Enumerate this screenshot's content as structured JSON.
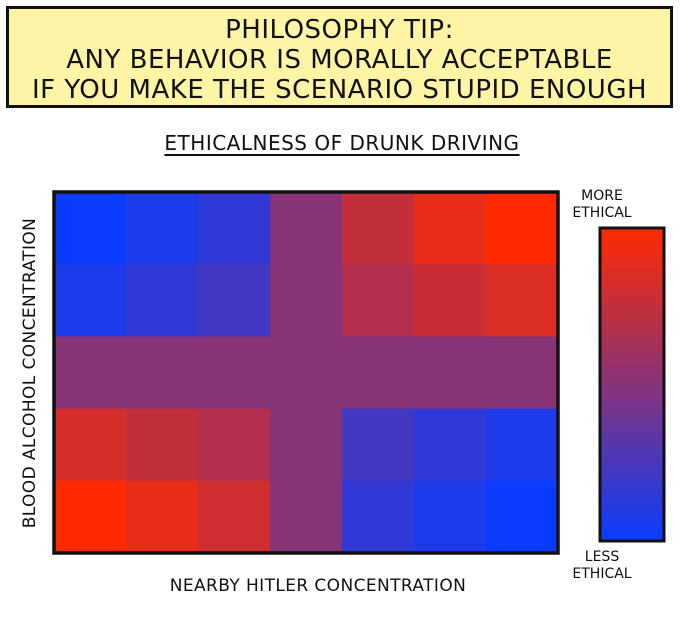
{
  "banner": {
    "lines": [
      "PHILOSOPHY TIP:",
      "ANY BEHAVIOR IS MORALLY ACCEPTABLE",
      "IF YOU MAKE THE SCENARIO STUPID ENOUGH"
    ],
    "background_color": "#fdf4a6"
  },
  "chart_data": {
    "type": "heatmap",
    "title": "ETHICALNESS OF DRUNK DRIVING",
    "xlabel": "NEARBY HITLER CONCENTRATION",
    "ylabel": "BLOOD ALCOHOL CONCENTRATION",
    "grid_columns": 7,
    "grid_rows": 5,
    "row_order": "top-to-bottom",
    "values": [
      [
        -1.0,
        -0.85,
        -0.7,
        0.0,
        0.5,
        0.8,
        1.0
      ],
      [
        -0.85,
        -0.7,
        -0.55,
        0.0,
        0.35,
        0.55,
        0.7
      ],
      [
        0.0,
        0.0,
        0.0,
        0.0,
        0.0,
        0.0,
        0.0
      ],
      [
        0.65,
        0.5,
        0.35,
        0.0,
        -0.55,
        -0.7,
        -0.85
      ],
      [
        1.0,
        0.8,
        0.6,
        0.0,
        -0.7,
        -0.85,
        -1.0
      ]
    ],
    "value_range": [
      -1,
      1
    ],
    "colorbar": {
      "top_label_lines": [
        "MORE",
        "ETHICAL"
      ],
      "bottom_label_lines": [
        "LESS",
        "ETHICAL"
      ],
      "high_color": "#ff2a00",
      "mid_color": "#883377",
      "low_color": "#0a3cff"
    }
  }
}
